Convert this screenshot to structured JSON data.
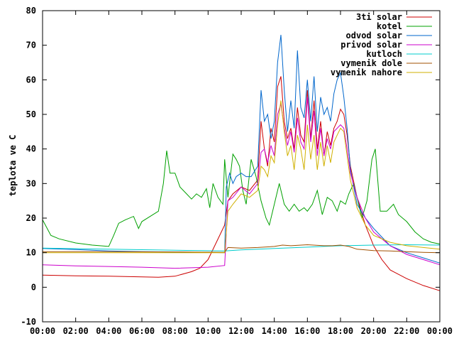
{
  "chart_data": {
    "type": "line",
    "title": "",
    "xlabel": "",
    "ylabel": "teplota ve C",
    "xlim": [
      0,
      24
    ],
    "ylim": [
      -10,
      80
    ],
    "x_ticks": [
      "00:00",
      "02:00",
      "04:00",
      "06:00",
      "08:00",
      "10:00",
      "12:00",
      "14:00",
      "16:00",
      "18:00",
      "20:00",
      "22:00",
      "00:00"
    ],
    "y_ticks": [
      -10,
      0,
      10,
      20,
      30,
      40,
      50,
      60,
      70,
      80
    ],
    "grid": false,
    "legend_position": "top-right",
    "series": [
      {
        "name": "3ti solar",
        "color": "#cc0000",
        "points": [
          [
            0,
            3.5
          ],
          [
            2,
            3.3
          ],
          [
            4,
            3.2
          ],
          [
            6,
            3
          ],
          [
            7,
            2.9
          ],
          [
            8,
            3.2
          ],
          [
            9,
            4.5
          ],
          [
            9.5,
            5.5
          ],
          [
            10,
            8
          ],
          [
            10.5,
            13
          ],
          [
            11,
            18
          ],
          [
            11.2,
            25
          ],
          [
            11.5,
            27
          ],
          [
            12,
            29
          ],
          [
            12.5,
            28
          ],
          [
            13,
            31
          ],
          [
            13.2,
            48
          ],
          [
            13.4,
            40
          ],
          [
            13.6,
            35
          ],
          [
            13.8,
            46
          ],
          [
            14,
            42
          ],
          [
            14.2,
            58
          ],
          [
            14.4,
            61
          ],
          [
            14.6,
            48
          ],
          [
            14.8,
            43
          ],
          [
            15,
            46
          ],
          [
            15.2,
            40
          ],
          [
            15.4,
            52
          ],
          [
            15.6,
            44
          ],
          [
            15.8,
            42
          ],
          [
            16,
            57
          ],
          [
            16.2,
            43
          ],
          [
            16.4,
            54
          ],
          [
            16.6,
            40
          ],
          [
            16.8,
            48
          ],
          [
            17,
            38
          ],
          [
            17.2,
            45
          ],
          [
            17.4,
            41
          ],
          [
            17.6,
            46
          ],
          [
            17.8,
            48
          ],
          [
            18,
            51.5
          ],
          [
            18.2,
            50
          ],
          [
            18.4,
            44
          ],
          [
            18.6,
            35
          ],
          [
            19,
            26
          ],
          [
            19.5,
            18
          ],
          [
            20,
            12
          ],
          [
            20.5,
            8
          ],
          [
            21,
            5
          ],
          [
            22,
            2.5
          ],
          [
            23,
            0.5
          ],
          [
            24,
            -1
          ]
        ]
      },
      {
        "name": "kotel",
        "color": "#00a000",
        "points": [
          [
            0,
            19.5
          ],
          [
            0.5,
            15
          ],
          [
            1,
            14
          ],
          [
            2,
            12.8
          ],
          [
            3,
            12.2
          ],
          [
            4,
            11.8
          ],
          [
            4.3,
            15
          ],
          [
            4.6,
            18.5
          ],
          [
            5,
            19.5
          ],
          [
            5.5,
            20.5
          ],
          [
            5.8,
            17
          ],
          [
            6,
            19
          ],
          [
            6.5,
            20.5
          ],
          [
            7,
            22
          ],
          [
            7.3,
            30
          ],
          [
            7.5,
            39.5
          ],
          [
            7.7,
            33
          ],
          [
            8,
            33
          ],
          [
            8.3,
            29
          ],
          [
            8.7,
            27
          ],
          [
            9,
            25.5
          ],
          [
            9.3,
            27
          ],
          [
            9.6,
            26
          ],
          [
            9.9,
            28.5
          ],
          [
            10.1,
            23
          ],
          [
            10.3,
            30
          ],
          [
            10.6,
            26
          ],
          [
            10.9,
            24
          ],
          [
            11,
            37
          ],
          [
            11.2,
            26
          ],
          [
            11.5,
            38.5
          ],
          [
            11.7,
            37
          ],
          [
            11.9,
            35
          ],
          [
            12.1,
            28
          ],
          [
            12.3,
            24
          ],
          [
            12.6,
            37
          ],
          [
            12.9,
            32
          ],
          [
            13.2,
            25
          ],
          [
            13.5,
            20
          ],
          [
            13.7,
            18
          ],
          [
            14,
            24
          ],
          [
            14.3,
            30
          ],
          [
            14.6,
            24
          ],
          [
            14.9,
            22
          ],
          [
            15.2,
            24
          ],
          [
            15.5,
            22
          ],
          [
            15.8,
            23
          ],
          [
            16,
            22
          ],
          [
            16.3,
            24
          ],
          [
            16.6,
            28
          ],
          [
            16.9,
            21
          ],
          [
            17.2,
            26
          ],
          [
            17.5,
            25
          ],
          [
            17.8,
            22
          ],
          [
            18,
            25
          ],
          [
            18.3,
            24
          ],
          [
            18.5,
            27
          ],
          [
            18.8,
            30
          ],
          [
            19,
            26
          ],
          [
            19.3,
            20
          ],
          [
            19.6,
            25
          ],
          [
            19.9,
            37
          ],
          [
            20.1,
            40
          ],
          [
            20.4,
            22
          ],
          [
            20.8,
            22
          ],
          [
            21.2,
            24
          ],
          [
            21.5,
            21
          ],
          [
            22,
            19
          ],
          [
            22.5,
            16
          ],
          [
            23,
            14
          ],
          [
            23.5,
            13
          ],
          [
            24,
            12.5
          ]
        ]
      },
      {
        "name": "odvod solar",
        "color": "#0066cc",
        "points": [
          [
            0,
            11.2
          ],
          [
            2,
            10.9
          ],
          [
            4,
            10.5
          ],
          [
            6,
            10.3
          ],
          [
            8,
            10.2
          ],
          [
            10,
            10.1
          ],
          [
            11,
            10
          ],
          [
            11.1,
            29
          ],
          [
            11.3,
            33
          ],
          [
            11.5,
            30
          ],
          [
            11.7,
            32
          ],
          [
            12,
            33
          ],
          [
            12.3,
            32
          ],
          [
            12.6,
            32
          ],
          [
            13,
            35
          ],
          [
            13.2,
            57
          ],
          [
            13.4,
            48
          ],
          [
            13.6,
            50
          ],
          [
            13.8,
            43
          ],
          [
            14,
            48
          ],
          [
            14.2,
            65
          ],
          [
            14.4,
            73
          ],
          [
            14.6,
            57
          ],
          [
            14.8,
            45
          ],
          [
            15,
            54
          ],
          [
            15.2,
            46
          ],
          [
            15.4,
            68.5
          ],
          [
            15.6,
            52
          ],
          [
            15.8,
            49
          ],
          [
            16,
            60
          ],
          [
            16.2,
            48
          ],
          [
            16.4,
            61
          ],
          [
            16.6,
            45
          ],
          [
            16.8,
            55
          ],
          [
            17,
            50
          ],
          [
            17.2,
            52
          ],
          [
            17.4,
            48
          ],
          [
            17.6,
            56
          ],
          [
            17.8,
            60
          ],
          [
            18,
            62
          ],
          [
            18.2,
            55
          ],
          [
            18.4,
            46
          ],
          [
            18.6,
            34
          ],
          [
            19,
            24
          ],
          [
            19.5,
            20
          ],
          [
            20,
            17
          ],
          [
            21,
            12
          ],
          [
            22,
            10
          ],
          [
            23,
            8.5
          ],
          [
            24,
            7
          ]
        ]
      },
      {
        "name": "privod solar",
        "color": "#cc00cc",
        "points": [
          [
            0,
            6.5
          ],
          [
            2,
            6.2
          ],
          [
            4,
            6
          ],
          [
            6,
            5.8
          ],
          [
            8,
            5.5
          ],
          [
            10,
            5.8
          ],
          [
            11,
            6.3
          ],
          [
            11.2,
            25
          ],
          [
            11.5,
            26
          ],
          [
            12,
            29
          ],
          [
            12.5,
            27
          ],
          [
            13,
            30
          ],
          [
            13.2,
            39
          ],
          [
            13.4,
            40
          ],
          [
            13.6,
            36
          ],
          [
            13.8,
            41
          ],
          [
            14,
            38
          ],
          [
            14.2,
            50
          ],
          [
            14.4,
            53
          ],
          [
            14.6,
            46
          ],
          [
            14.8,
            41
          ],
          [
            15,
            45
          ],
          [
            15.2,
            39
          ],
          [
            15.4,
            49
          ],
          [
            15.6,
            42
          ],
          [
            15.8,
            40
          ],
          [
            16,
            55
          ],
          [
            16.2,
            42
          ],
          [
            16.4,
            51
          ],
          [
            16.6,
            38
          ],
          [
            16.8,
            46
          ],
          [
            17,
            38
          ],
          [
            17.2,
            43
          ],
          [
            17.4,
            40
          ],
          [
            17.6,
            45
          ],
          [
            17.8,
            46
          ],
          [
            18,
            47
          ],
          [
            18.2,
            46
          ],
          [
            18.4,
            40
          ],
          [
            18.6,
            33
          ],
          [
            19,
            26
          ],
          [
            19.5,
            20
          ],
          [
            20,
            16
          ],
          [
            21,
            12
          ],
          [
            22,
            9.5
          ],
          [
            23,
            8
          ],
          [
            24,
            6.5
          ]
        ]
      },
      {
        "name": "kutloch",
        "color": "#00cccc",
        "points": [
          [
            0,
            11.3
          ],
          [
            4,
            11
          ],
          [
            8,
            10.7
          ],
          [
            11,
            10.5
          ],
          [
            12,
            10.8
          ],
          [
            14,
            11.2
          ],
          [
            16,
            11.6
          ],
          [
            18,
            12
          ],
          [
            20,
            12.2
          ],
          [
            22,
            12.3
          ],
          [
            24,
            12.2
          ]
        ]
      },
      {
        "name": "vymenik dole",
        "color": "#a05000",
        "points": [
          [
            0,
            10.3
          ],
          [
            4,
            10.3
          ],
          [
            8,
            10.2
          ],
          [
            11,
            10.1
          ],
          [
            11.2,
            11.5
          ],
          [
            12,
            11.3
          ],
          [
            13,
            11.5
          ],
          [
            14,
            11.8
          ],
          [
            14.5,
            12.2
          ],
          [
            15,
            12
          ],
          [
            16,
            12.3
          ],
          [
            17,
            12
          ],
          [
            17.5,
            12
          ],
          [
            18,
            12.2
          ],
          [
            18.5,
            11.8
          ],
          [
            19,
            11
          ],
          [
            20,
            10.6
          ],
          [
            21,
            10.5
          ],
          [
            22,
            10.3
          ],
          [
            23,
            10.1
          ],
          [
            24,
            10
          ]
        ]
      },
      {
        "name": "vymenik nahore",
        "color": "#d0b000",
        "points": [
          [
            0,
            10
          ],
          [
            4,
            10
          ],
          [
            8,
            10
          ],
          [
            11,
            10
          ],
          [
            11.2,
            22
          ],
          [
            11.5,
            24
          ],
          [
            12,
            27
          ],
          [
            12.5,
            26
          ],
          [
            13,
            28
          ],
          [
            13.2,
            35
          ],
          [
            13.4,
            34
          ],
          [
            13.6,
            32
          ],
          [
            13.8,
            38
          ],
          [
            14,
            36
          ],
          [
            14.2,
            47
          ],
          [
            14.4,
            54
          ],
          [
            14.6,
            45
          ],
          [
            14.8,
            38
          ],
          [
            15,
            41
          ],
          [
            15.2,
            34
          ],
          [
            15.4,
            44
          ],
          [
            15.6,
            40
          ],
          [
            15.8,
            34
          ],
          [
            16,
            47
          ],
          [
            16.2,
            37
          ],
          [
            16.4,
            44
          ],
          [
            16.6,
            34
          ],
          [
            16.8,
            42
          ],
          [
            17,
            35
          ],
          [
            17.2,
            41
          ],
          [
            17.4,
            36
          ],
          [
            17.6,
            42
          ],
          [
            17.8,
            44
          ],
          [
            18,
            46
          ],
          [
            18.2,
            45
          ],
          [
            18.4,
            38
          ],
          [
            18.6,
            31
          ],
          [
            19,
            23
          ],
          [
            19.5,
            18
          ],
          [
            20,
            15
          ],
          [
            21,
            13
          ],
          [
            22,
            12
          ],
          [
            23,
            11.5
          ],
          [
            24,
            11
          ]
        ]
      }
    ]
  }
}
